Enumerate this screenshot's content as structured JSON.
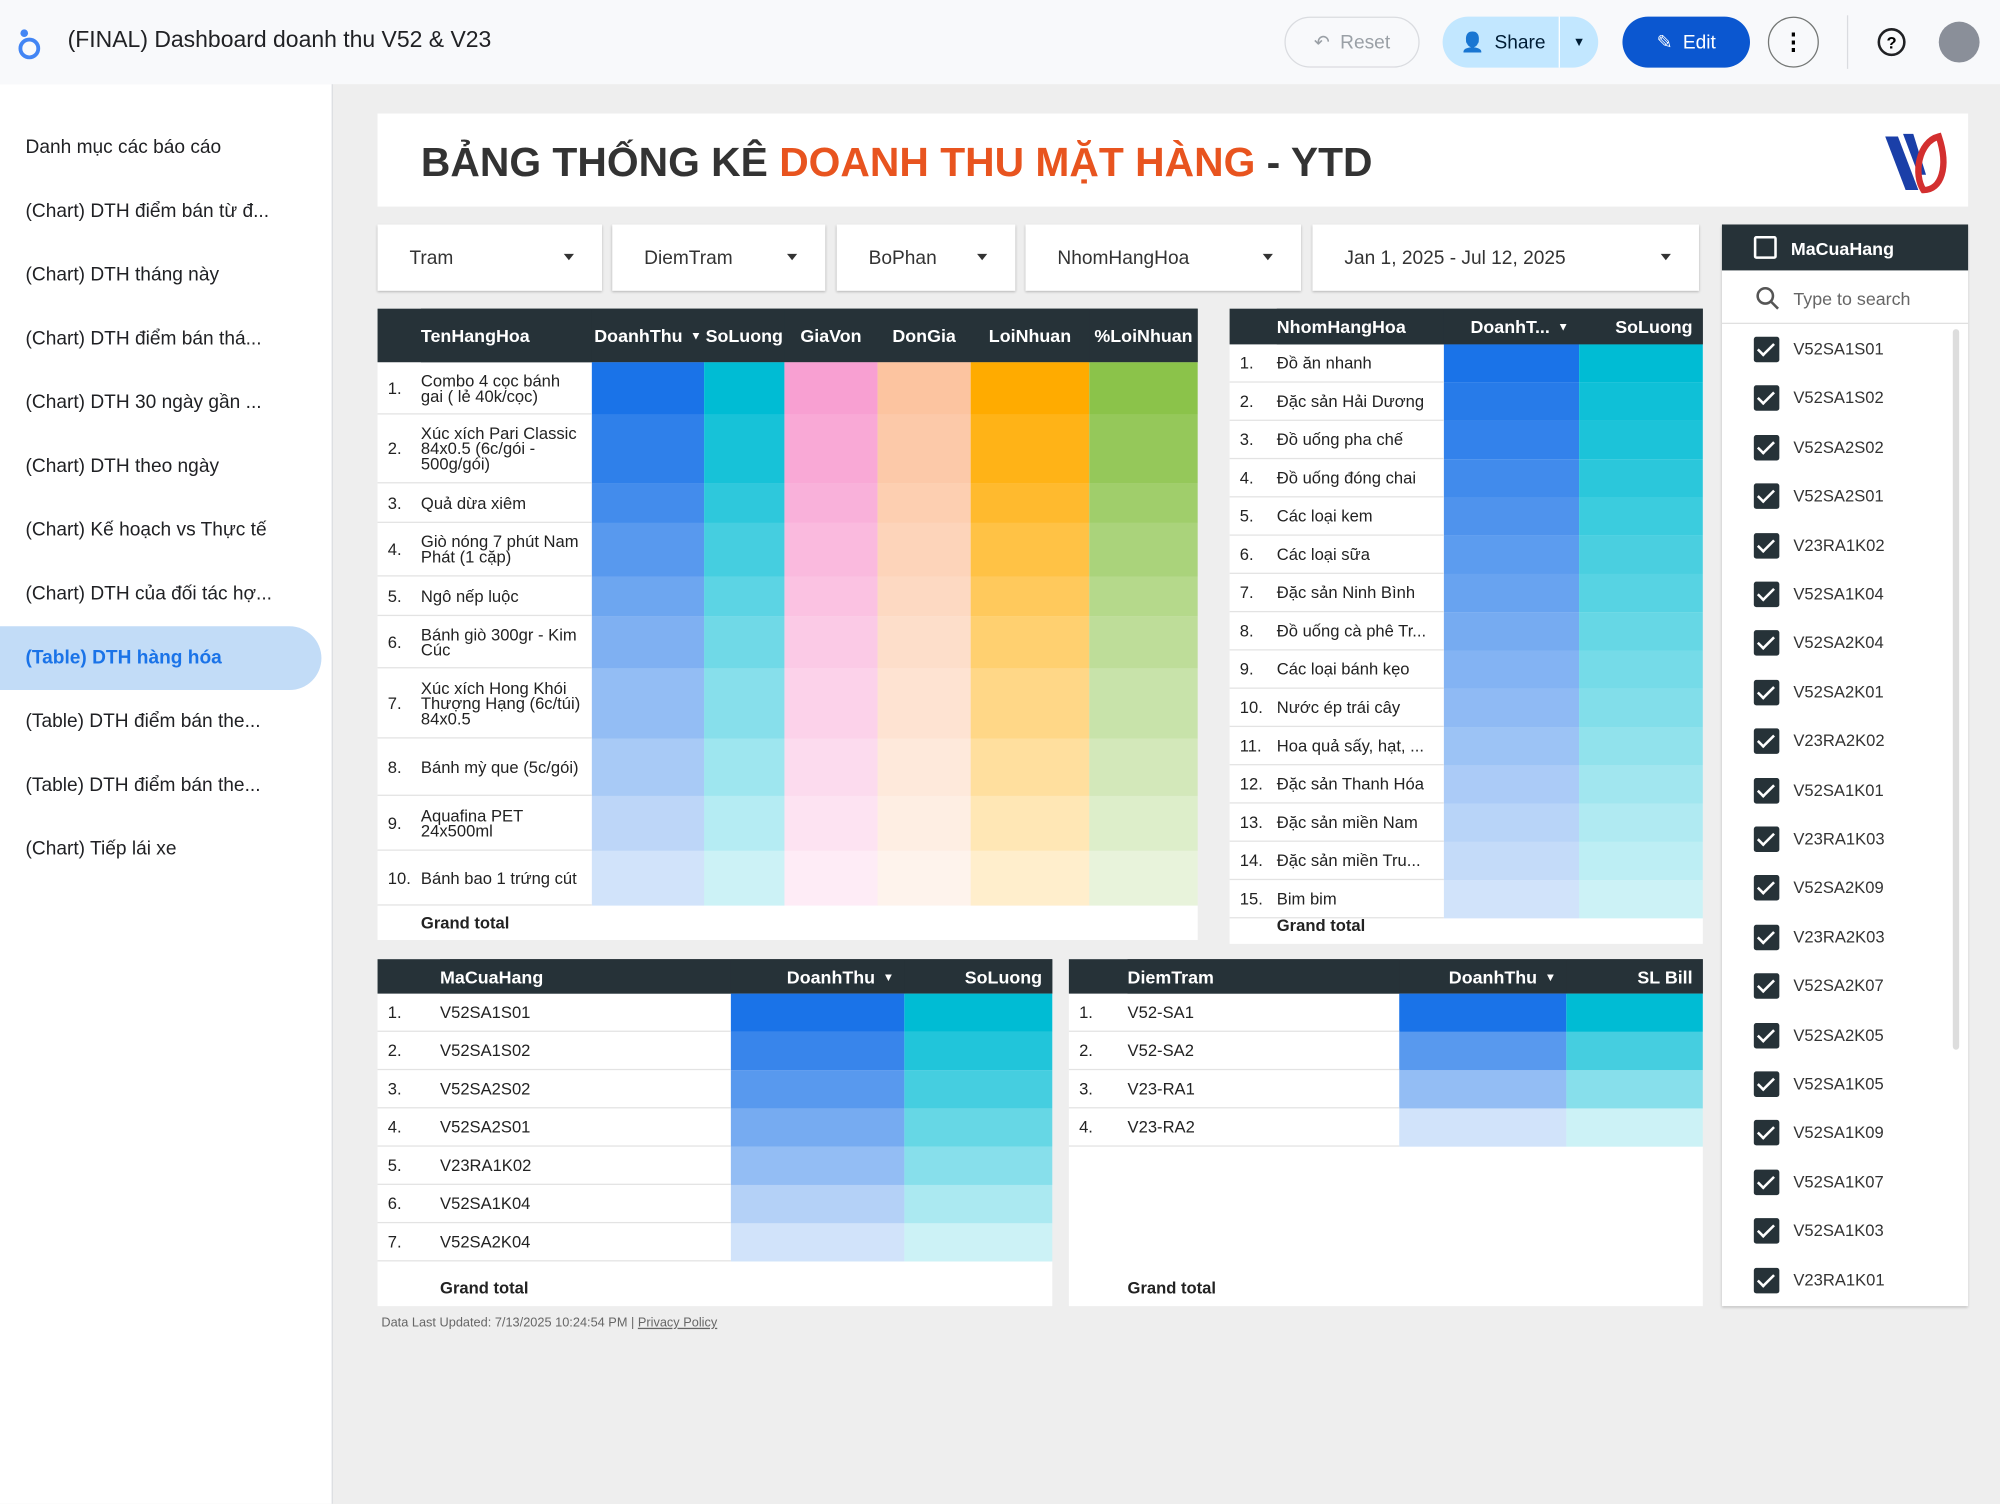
{
  "header": {
    "title": "(FINAL) Dashboard doanh thu V52 & V23",
    "reset": "Reset",
    "share": "Share",
    "edit": "Edit"
  },
  "sidebar": {
    "items": [
      "Danh mục các báo cáo",
      "(Chart) DTH điểm bán từ đ...",
      "(Chart) DTH tháng này",
      "(Chart) DTH điểm bán thá...",
      "(Chart) DTH 30 ngày gần ...",
      "(Chart) DTH theo ngày",
      "(Chart) Kế hoạch vs Thực tế",
      "(Chart) DTH của đối tác hợ...",
      "(Table) DTH hàng hóa",
      "(Table) DTH điểm bán the...",
      "(Table) DTH điểm bán the...",
      "(Chart) Tiếp lái xe"
    ],
    "active": 8
  },
  "report": {
    "title_start": "BẢNG THỐNG KÊ ",
    "title_highlight": "DOANH THU MẶT HÀNG",
    "title_end": " - YTD"
  },
  "filters": [
    "Tram",
    "DiemTram",
    "BoPhan",
    "NhomHangHoa",
    "Jan 1, 2025 - Jul 12, 2025"
  ],
  "table1": {
    "columns": [
      "TenHangHoa",
      "DoanhThu",
      "SoLuong",
      "GiaVon",
      "DonGia",
      "LoiNhuan",
      "%LoiNhuan"
    ],
    "rows": [
      [
        "1.",
        "Combo 4 cọc bánh gai ( lẻ 40k/cọc)"
      ],
      [
        "2.",
        "Xúc xích Pari Classic 84x0.5 (6c/gói - 500g/gói)"
      ],
      [
        "3.",
        "Quả dừa xiêm"
      ],
      [
        "4.",
        "Giò nóng 7 phút Nam Phát (1 cặp)"
      ],
      [
        "5.",
        "Ngô nếp luộc"
      ],
      [
        "6.",
        "Bánh giò 300gr - Kim Cúc"
      ],
      [
        "7.",
        "Xúc xích Hong Khói Thượng Hạng (6c/túi) 84x0.5"
      ],
      [
        "8.",
        "Bánh mỳ que (5c/gói)"
      ],
      [
        "9.",
        "Aquafina PET 24x500ml"
      ],
      [
        "10.",
        "Bánh bao 1 trứng cút"
      ]
    ],
    "total": "Grand total"
  },
  "table2": {
    "columns": [
      "NhomHangHoa",
      "DoanhT...",
      "SoLuong"
    ],
    "rows": [
      [
        "1.",
        "Đồ ăn nhanh"
      ],
      [
        "2.",
        "Đặc sản Hải Dương"
      ],
      [
        "3.",
        "Đồ uống pha chế"
      ],
      [
        "4.",
        "Đồ uống đóng chai"
      ],
      [
        "5.",
        "Các loại kem"
      ],
      [
        "6.",
        "Các loại sữa"
      ],
      [
        "7.",
        "Đặc sản Ninh Bình"
      ],
      [
        "8.",
        "Đồ uống cà phê Tr..."
      ],
      [
        "9.",
        "Các loại bánh kẹo"
      ],
      [
        "10.",
        "Nước ép trái cây"
      ],
      [
        "11.",
        "Hoa quả sấy, hạt, ..."
      ],
      [
        "12.",
        "Đặc sản Thanh Hóa"
      ],
      [
        "13.",
        "Đặc sản miền Nam"
      ],
      [
        "14.",
        "Đặc sản miền Tru..."
      ],
      [
        "15.",
        "Bim bim"
      ]
    ],
    "total": "Grand total"
  },
  "table3": {
    "columns": [
      "MaCuaHang",
      "DoanhThu",
      "SoLuong"
    ],
    "rows": [
      [
        "1.",
        "V52SA1S01"
      ],
      [
        "2.",
        "V52SA1S02"
      ],
      [
        "3.",
        "V52SA2S02"
      ],
      [
        "4.",
        "V52SA2S01"
      ],
      [
        "5.",
        "V23RA1K02"
      ],
      [
        "6.",
        "V52SA1K04"
      ],
      [
        "7.",
        "V52SA2K04"
      ]
    ],
    "total": "Grand total"
  },
  "table4": {
    "columns": [
      "DiemTram",
      "DoanhThu",
      "SL Bill"
    ],
    "rows": [
      [
        "1.",
        "V52-SA1"
      ],
      [
        "2.",
        "V52-SA2"
      ],
      [
        "3.",
        "V23-RA1"
      ],
      [
        "4.",
        "V23-RA2"
      ]
    ],
    "total": "Grand total"
  },
  "store_filter": {
    "title": "MaCuaHang",
    "search": "Type to search",
    "items": [
      "V52SA1S01",
      "V52SA1S02",
      "V52SA2S02",
      "V52SA2S01",
      "V23RA1K02",
      "V52SA1K04",
      "V52SA2K04",
      "V52SA2K01",
      "V23RA2K02",
      "V52SA1K01",
      "V23RA1K03",
      "V52SA2K09",
      "V23RA2K03",
      "V52SA2K07",
      "V52SA2K05",
      "V52SA1K05",
      "V52SA1K09",
      "V52SA1K07",
      "V52SA1K03",
      "V23RA1K01"
    ]
  },
  "footer": {
    "updated": "Data Last Updated: 7/13/2025 10:24:54 PM",
    "privacy": "Privacy Policy"
  }
}
